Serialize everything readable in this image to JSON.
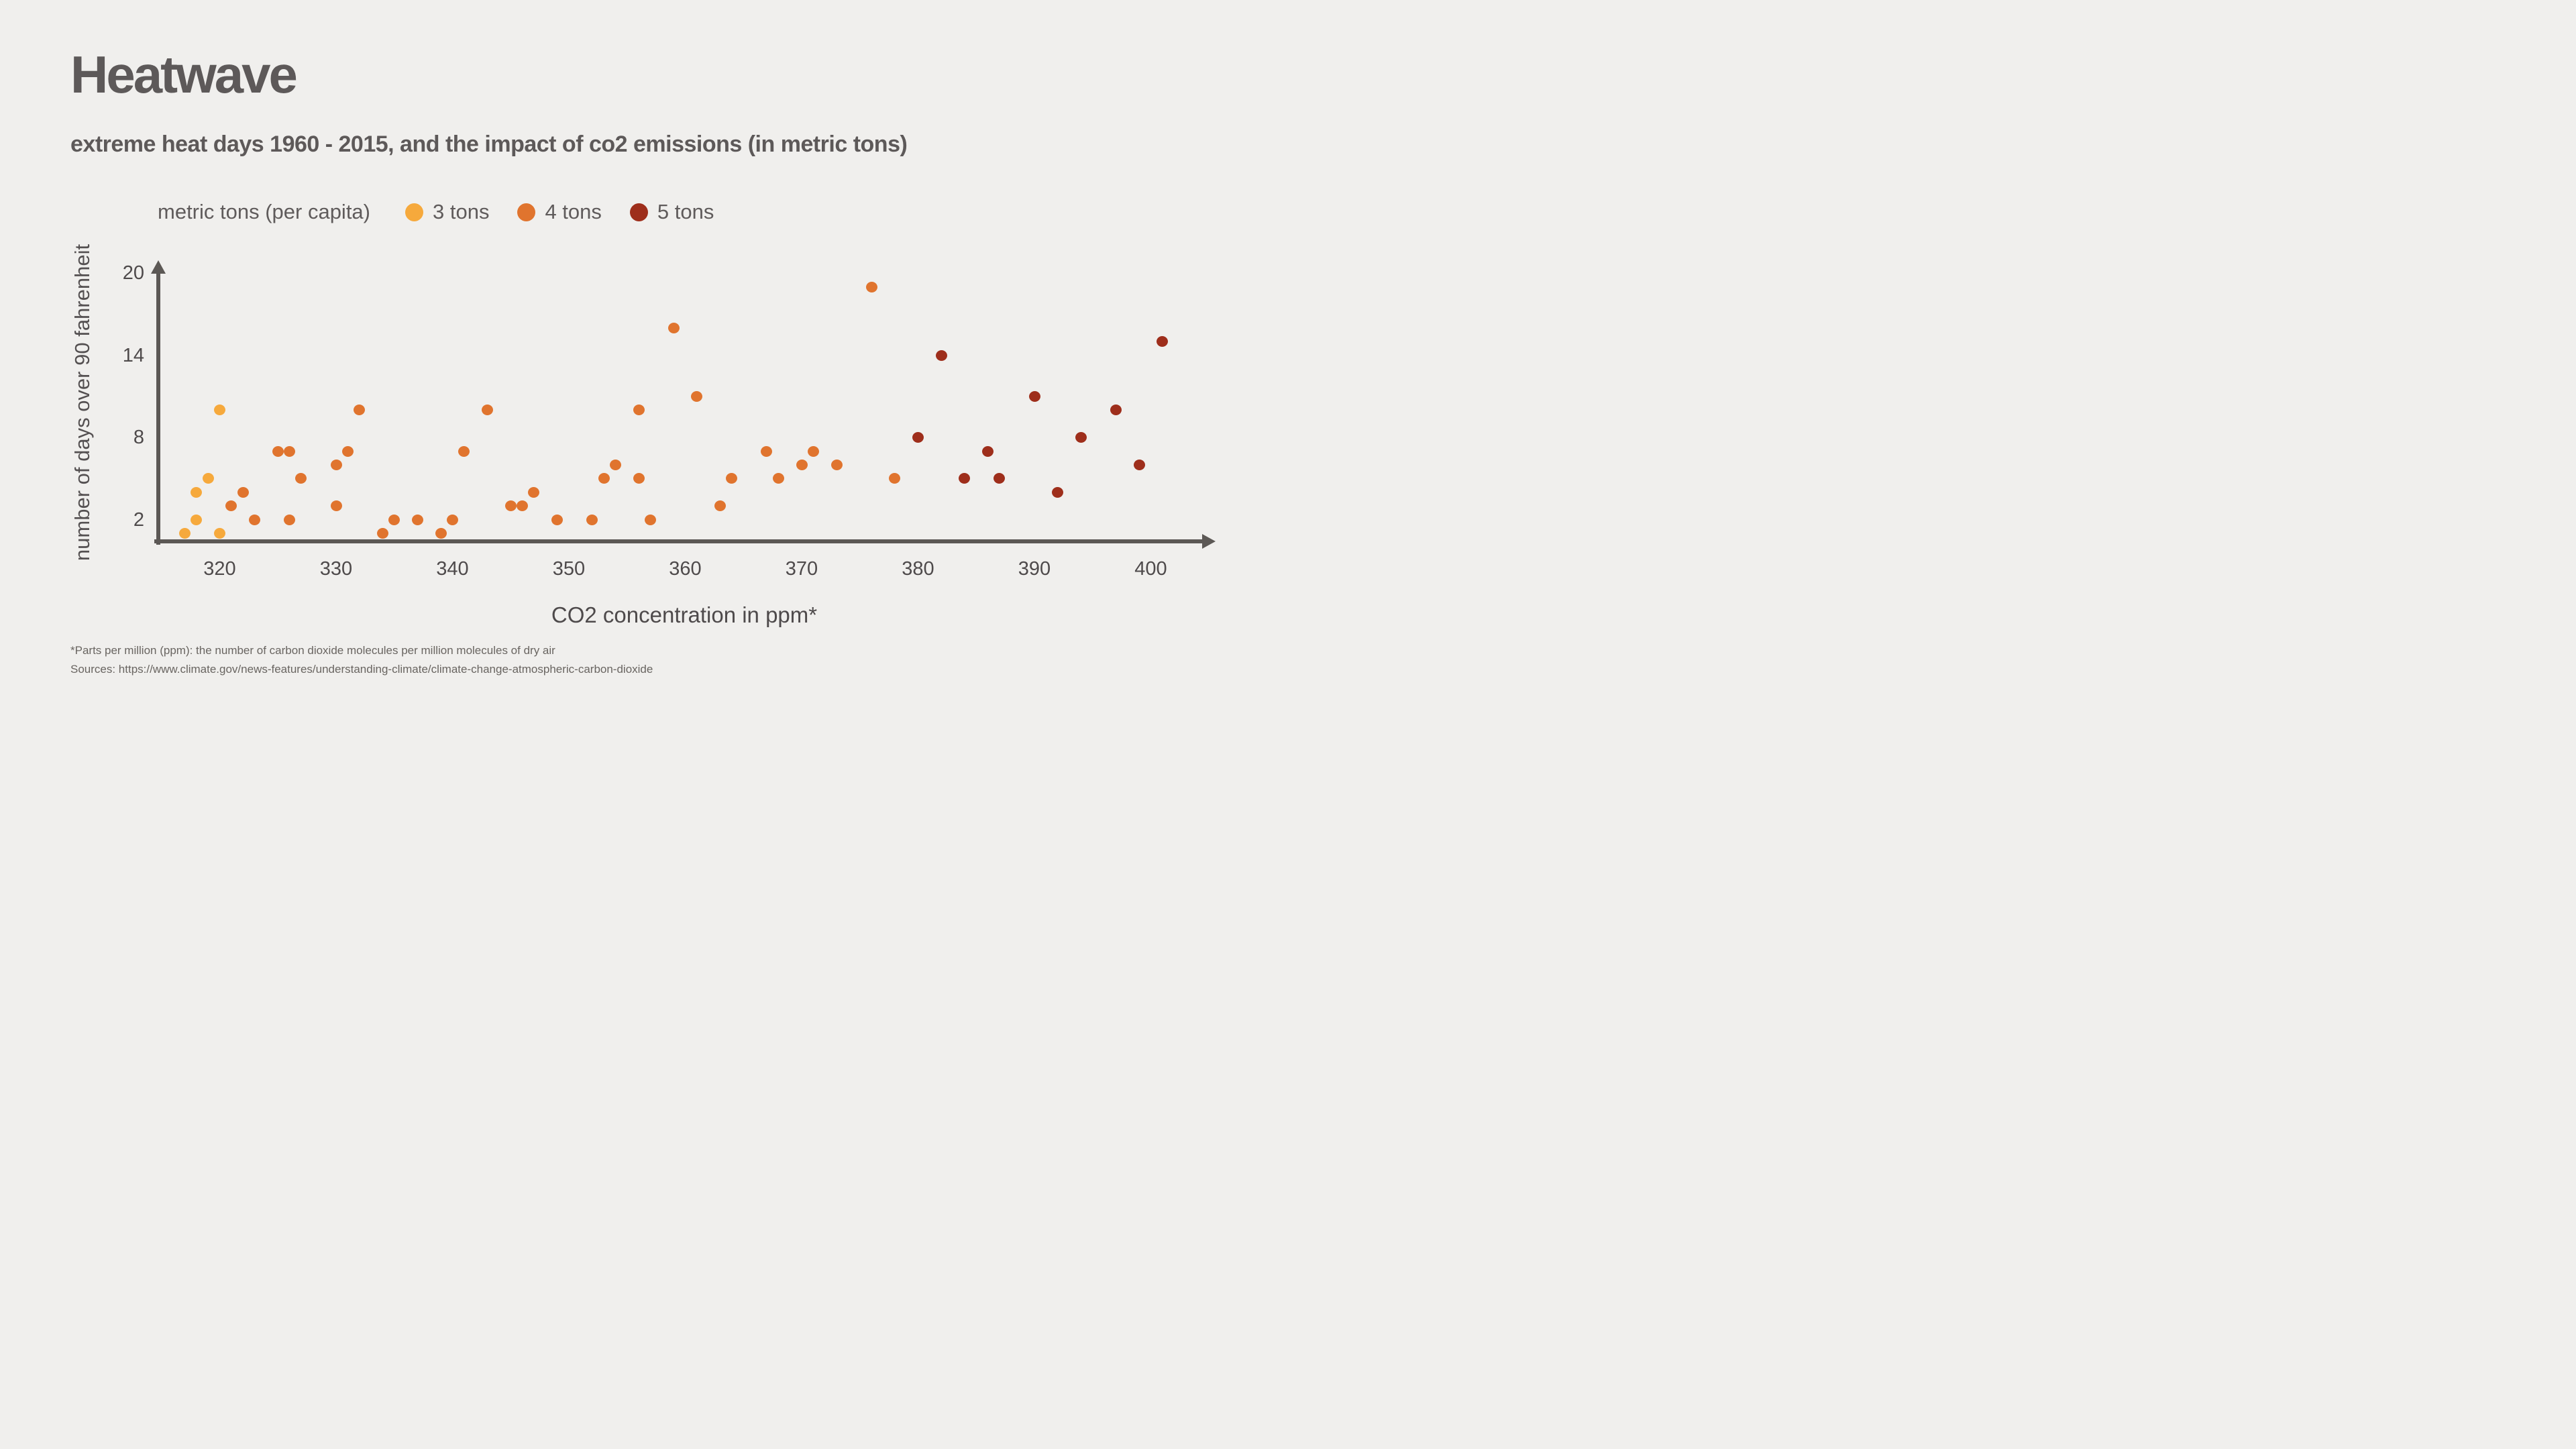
{
  "title": "Heatwave",
  "subtitle": "extreme heat days 1960 - 2015, and the impact of co2 emissions (in metric tons)",
  "legend": {
    "label": "metric tons (per capita)",
    "items": [
      {
        "label": "3 tons",
        "color": "#f6a93c"
      },
      {
        "label": "4 tons",
        "color": "#e0742e"
      },
      {
        "label": "5 tons",
        "color": "#9e2e1b"
      }
    ]
  },
  "chart_data": {
    "type": "scatter",
    "title": "Heatwave",
    "xlabel": "CO2 concentration in ppm*",
    "ylabel": "number of days over 90 fahrenheit",
    "x_ticks": [
      320,
      330,
      340,
      350,
      360,
      370,
      380,
      390,
      400
    ],
    "y_ticks": [
      2,
      8,
      14,
      20
    ],
    "xlim": [
      315,
      406
    ],
    "ylim": [
      0,
      21
    ],
    "grid": false,
    "legend_position": "top",
    "series": [
      {
        "name": "3 tons",
        "color": "#f6a93c",
        "points": [
          [
            317,
            1
          ],
          [
            318,
            2
          ],
          [
            318,
            4
          ],
          [
            319,
            5
          ],
          [
            320,
            1
          ],
          [
            320,
            10
          ]
        ]
      },
      {
        "name": "4 tons",
        "color": "#e0742e",
        "points": [
          [
            321,
            3
          ],
          [
            322,
            4
          ],
          [
            323,
            2
          ],
          [
            325,
            7
          ],
          [
            326,
            7
          ],
          [
            326,
            2
          ],
          [
            327,
            5
          ],
          [
            330,
            6
          ],
          [
            330,
            3
          ],
          [
            331,
            7
          ],
          [
            332,
            10
          ],
          [
            334,
            1
          ],
          [
            335,
            2
          ],
          [
            337,
            2
          ],
          [
            339,
            1
          ],
          [
            340,
            2
          ],
          [
            341,
            7
          ],
          [
            343,
            10
          ],
          [
            345,
            3
          ],
          [
            346,
            3
          ],
          [
            347,
            4
          ],
          [
            349,
            2
          ],
          [
            352,
            2
          ],
          [
            353,
            5
          ],
          [
            354,
            6
          ],
          [
            356,
            10
          ],
          [
            356,
            5
          ],
          [
            357,
            2
          ],
          [
            359,
            16
          ],
          [
            361,
            11
          ],
          [
            363,
            3
          ],
          [
            364,
            5
          ],
          [
            367,
            7
          ],
          [
            368,
            5
          ],
          [
            370,
            6
          ],
          [
            371,
            7
          ],
          [
            373,
            6
          ],
          [
            376,
            19
          ],
          [
            378,
            5
          ]
        ]
      },
      {
        "name": "5 tons",
        "color": "#9e2e1b",
        "points": [
          [
            380,
            8
          ],
          [
            382,
            14
          ],
          [
            384,
            5
          ],
          [
            386,
            7
          ],
          [
            387,
            5
          ],
          [
            390,
            11
          ],
          [
            392,
            4
          ],
          [
            394,
            8
          ],
          [
            397,
            10
          ],
          [
            399,
            6
          ],
          [
            401,
            15
          ]
        ]
      }
    ]
  },
  "footnote": "*Parts per million (ppm): the number of carbon dioxide molecules per million molecules of dry air",
  "sources": "Sources: https://www.climate.gov/news-features/understanding-climate/climate-change-atmospheric-carbon-dioxide"
}
